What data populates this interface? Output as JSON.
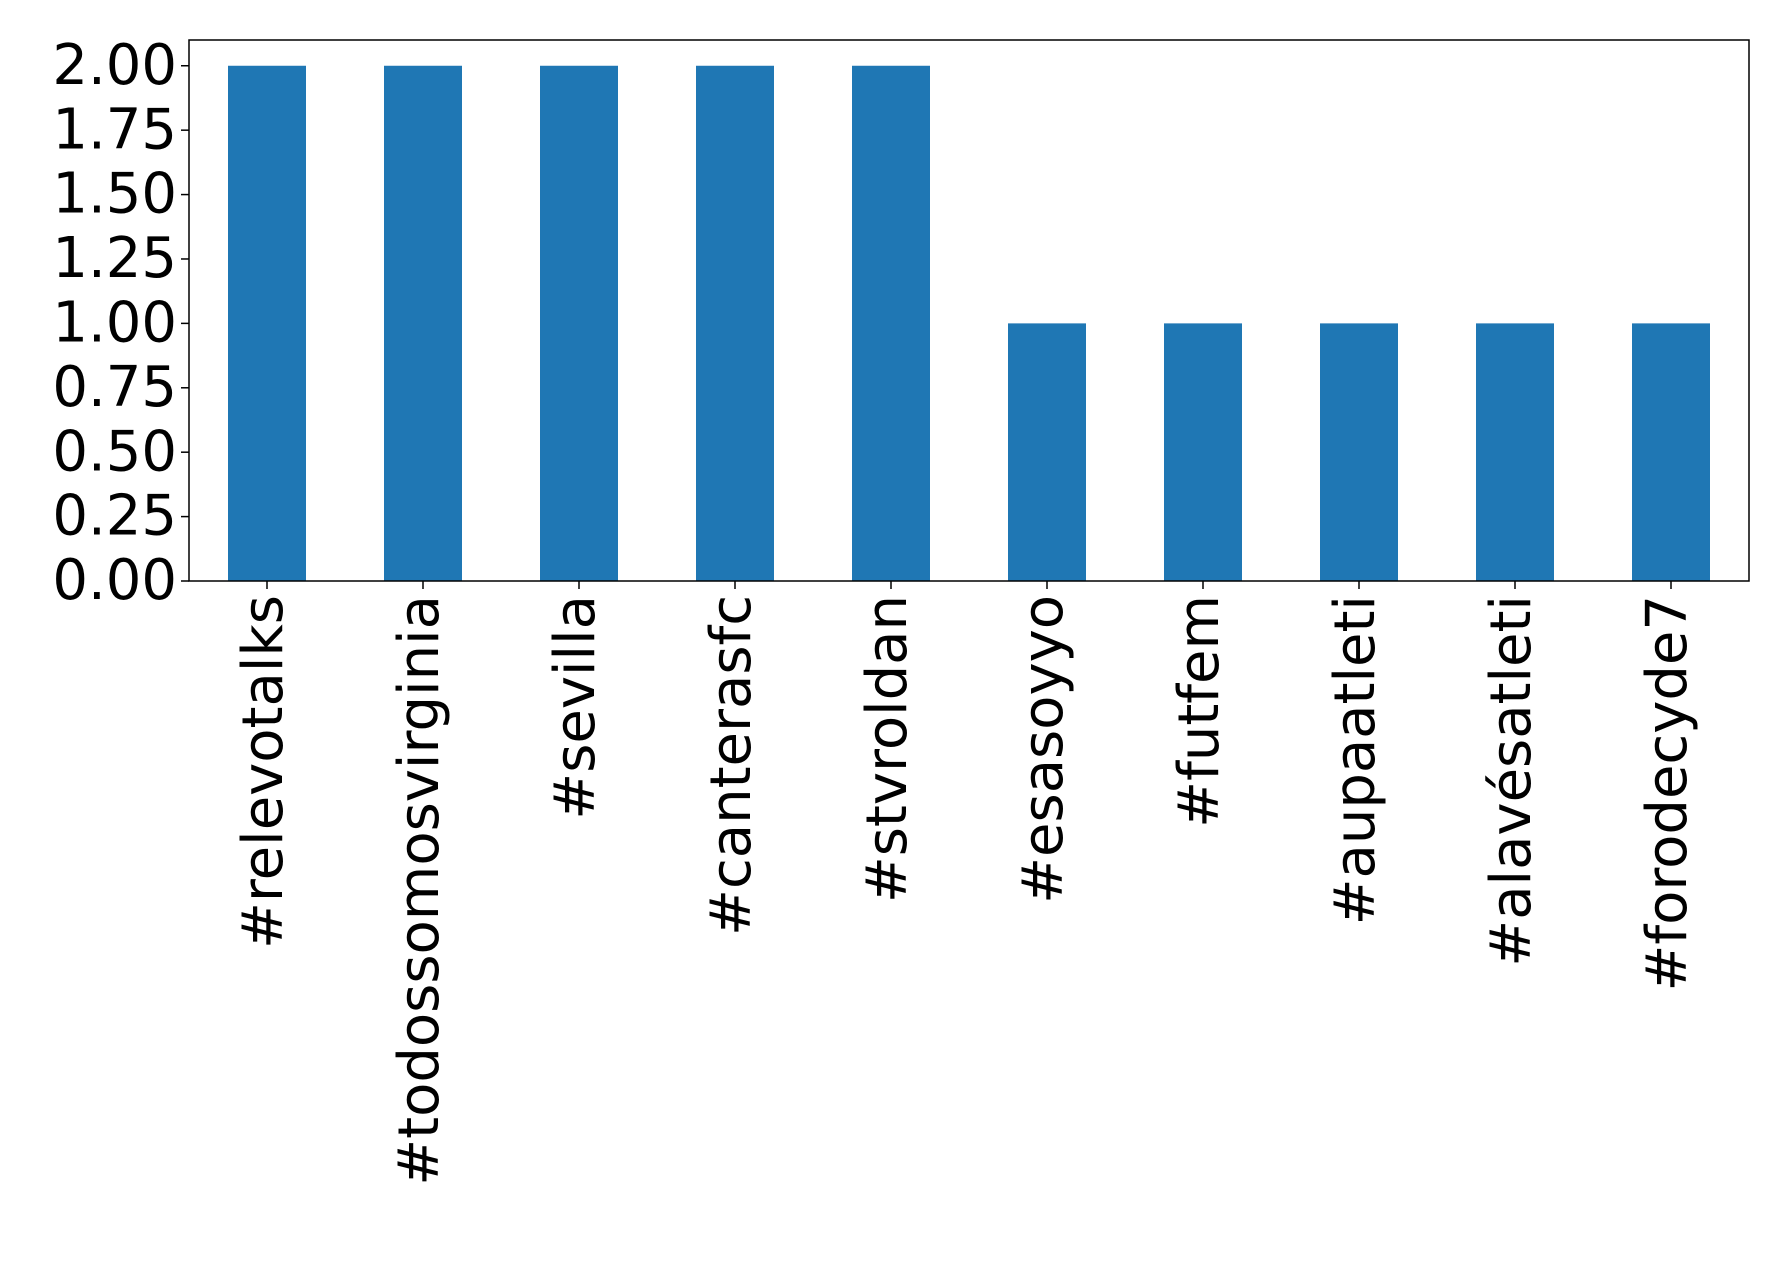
{
  "chart_data": {
    "type": "bar",
    "categories": [
      "#relevotalks",
      "#todossomosvirginia",
      "#sevilla",
      "#canterasfc",
      "#stvroldan",
      "#esasoyyo",
      "#futfem",
      "#aupaatleti",
      "#alavésatleti",
      "#forodecyde7"
    ],
    "values": [
      2,
      2,
      2,
      2,
      2,
      1,
      1,
      1,
      1,
      1
    ],
    "color": "#1f77b4",
    "ylim": [
      0,
      2.1
    ],
    "yticks": [
      {
        "value": 0,
        "label": "0.00"
      },
      {
        "value": 0.25,
        "label": "0.25"
      },
      {
        "value": 0.5,
        "label": "0.50"
      },
      {
        "value": 0.75,
        "label": "0.75"
      },
      {
        "value": 1,
        "label": "1.00"
      },
      {
        "value": 1.25,
        "label": "1.25"
      },
      {
        "value": 1.5,
        "label": "1.50"
      },
      {
        "value": 1.75,
        "label": "1.75"
      },
      {
        "value": 2,
        "label": "2.00"
      }
    ],
    "grid": false
  }
}
